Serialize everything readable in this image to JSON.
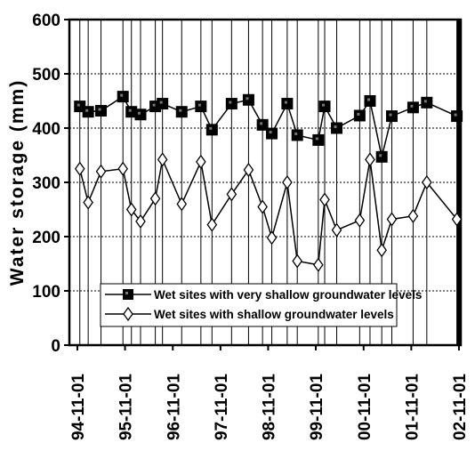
{
  "chart_data": {
    "type": "line",
    "ylabel": "Water storage (mm)",
    "xlabel": "",
    "ylim": [
      0,
      600
    ],
    "yticks": [
      0,
      100,
      200,
      300,
      400,
      500,
      600
    ],
    "xlim": [
      "1994-09-01",
      "2002-11-15"
    ],
    "xtick_labels": [
      "94-11-01",
      "95-11-01",
      "96-11-01",
      "97-11-01",
      "98-11-01",
      "99-11-01",
      "00-11-01",
      "01-11-01",
      "02-11-01"
    ],
    "xtick_dates": [
      "1994-11-01",
      "1995-11-01",
      "1996-11-01",
      "1997-11-01",
      "1998-11-01",
      "1999-11-01",
      "2000-11-01",
      "2001-11-01",
      "2002-11-01"
    ],
    "grid": "vertical lines at sampling dates; horizontal dashed lines at y ticks",
    "legend_position": "bottom-center",
    "series": [
      {
        "name": "Wet sites with very shallow groundwater levels",
        "marker": "filled-square",
        "color": "#000000",
        "x": [
          "1994-11-20",
          "1995-01-23",
          "1995-05-01",
          "1995-10-16",
          "1995-12-20",
          "1996-02-28",
          "1996-06-20",
          "1996-08-14",
          "1997-01-08",
          "1997-06-04",
          "1997-08-28",
          "1998-01-25",
          "1998-06-04",
          "1998-09-19",
          "1998-11-29",
          "1999-03-27",
          "1999-06-12",
          "1999-11-20",
          "2000-01-08",
          "2000-04-09",
          "2000-10-02",
          "2000-12-20",
          "2001-03-20",
          "2001-06-05",
          "2001-11-15",
          "2002-02-28",
          "2002-10-16"
        ],
        "y": [
          440,
          430,
          432,
          458,
          430,
          425,
          440,
          445,
          430,
          440,
          397,
          445,
          452,
          406,
          390,
          445,
          387,
          378,
          440,
          400,
          423,
          450,
          347,
          422,
          438,
          447,
          422
        ]
      },
      {
        "name": "Wet sites with shallow groundwater levels",
        "marker": "open-diamond",
        "color": "#000000",
        "x": [
          "1994-11-20",
          "1995-01-23",
          "1995-05-01",
          "1995-10-16",
          "1995-12-20",
          "1996-02-28",
          "1996-06-20",
          "1996-08-14",
          "1997-01-08",
          "1997-06-04",
          "1997-08-28",
          "1998-01-25",
          "1998-06-04",
          "1998-09-19",
          "1998-11-29",
          "1999-03-27",
          "1999-06-12",
          "1999-11-20",
          "2000-01-08",
          "2000-04-09",
          "2000-10-02",
          "2000-12-20",
          "2001-03-20",
          "2001-06-05",
          "2001-11-15",
          "2002-02-28",
          "2002-10-16"
        ],
        "y": [
          325,
          263,
          320,
          325,
          250,
          228,
          270,
          342,
          260,
          338,
          222,
          278,
          323,
          255,
          198,
          300,
          155,
          148,
          268,
          212,
          230,
          342,
          175,
          232,
          238,
          300,
          232
        ]
      }
    ]
  }
}
